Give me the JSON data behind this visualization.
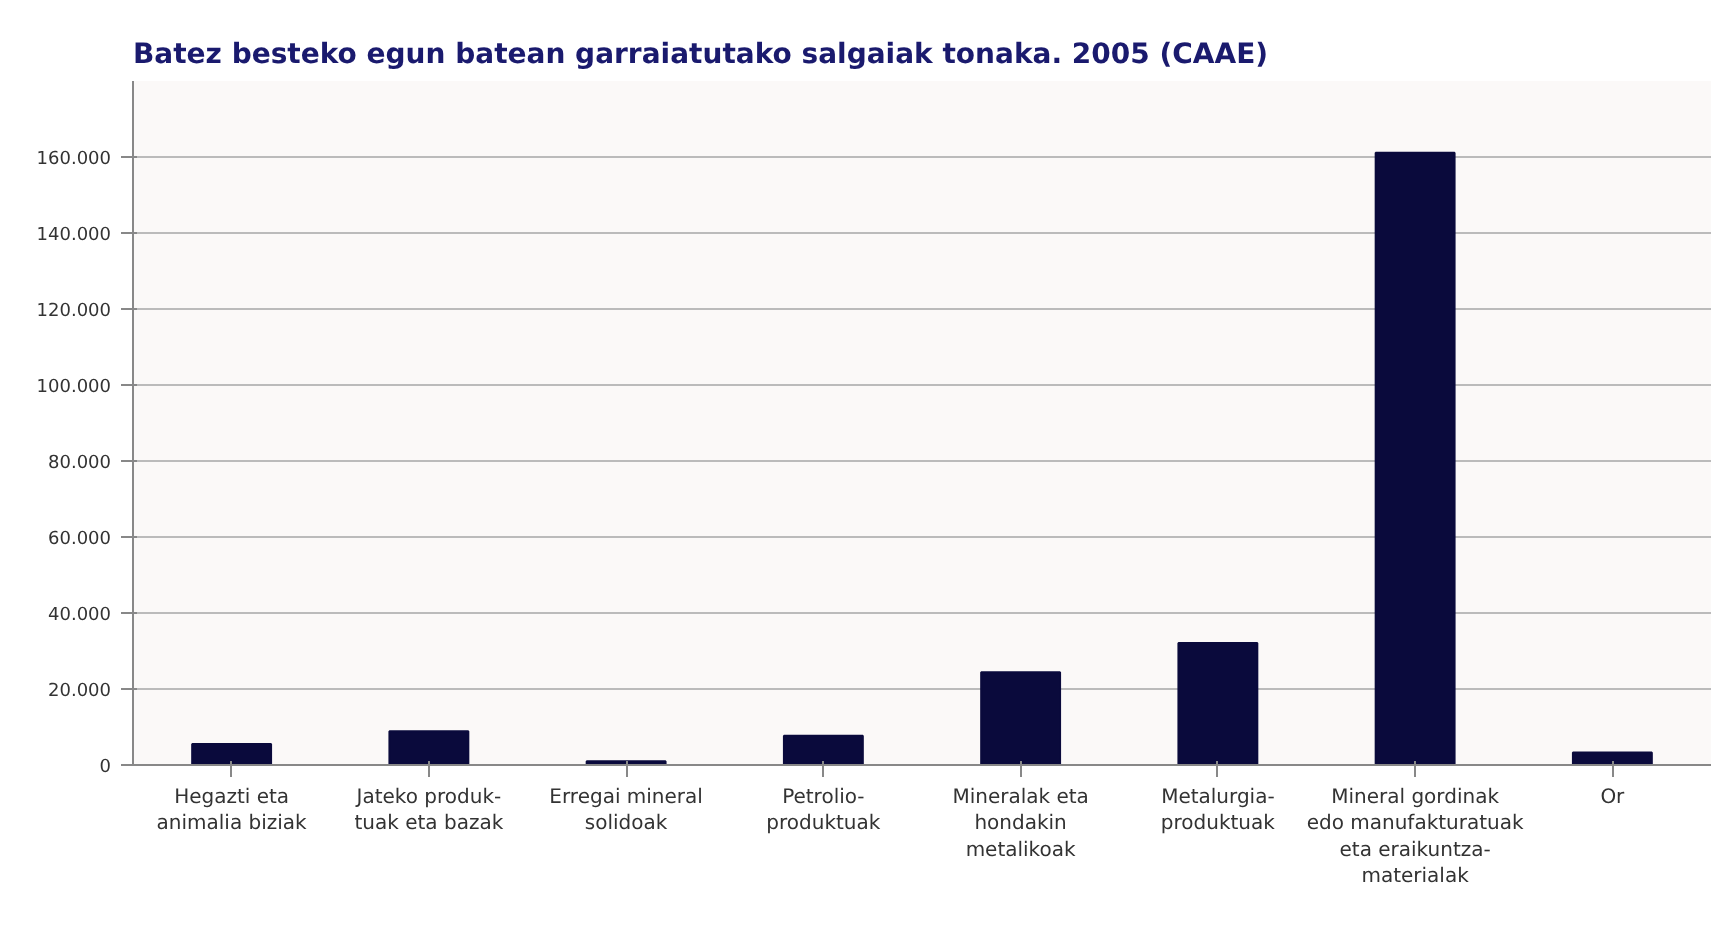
{
  "chart_data": {
    "type": "bar",
    "title": "Batez besteko egun batean garraiatutako salgaiak tonaka. 2005 (CAAE)",
    "categories": [
      "Hegazti eta\nanimalia biziak",
      "Jateko produk-\ntuak eta bazak",
      "Erregai mineral\nsolidoak",
      "Petrolio-\nproduktuak",
      "Mineralak eta\nhondakin\nmetalikoak",
      "Metalurgia-\nproduktuak",
      "Mineral gordinak\nedo manufakturatuak\neta eraikuntza-\nmaterialak",
      "Or"
    ],
    "values": [
      5500,
      8900,
      1000,
      7700,
      24400,
      32100,
      161100,
      3300
    ],
    "color": "#0a0a3c",
    "ylim": [
      0,
      180000
    ],
    "yticks": [
      0,
      {
        "value": 20000,
        "label": "20.000"
      },
      {
        "value": 40000,
        "label": "40.000"
      },
      {
        "value": 60000,
        "label": "60.000"
      },
      {
        "value": 80000,
        "label": "80.000"
      },
      {
        "value": 100000,
        "label": "100.000"
      },
      {
        "value": 120000,
        "label": "120.000"
      },
      {
        "value": 140000,
        "label": "140.000"
      },
      {
        "value": 160000,
        "label": "160.000"
      }
    ],
    "grid": "y"
  }
}
